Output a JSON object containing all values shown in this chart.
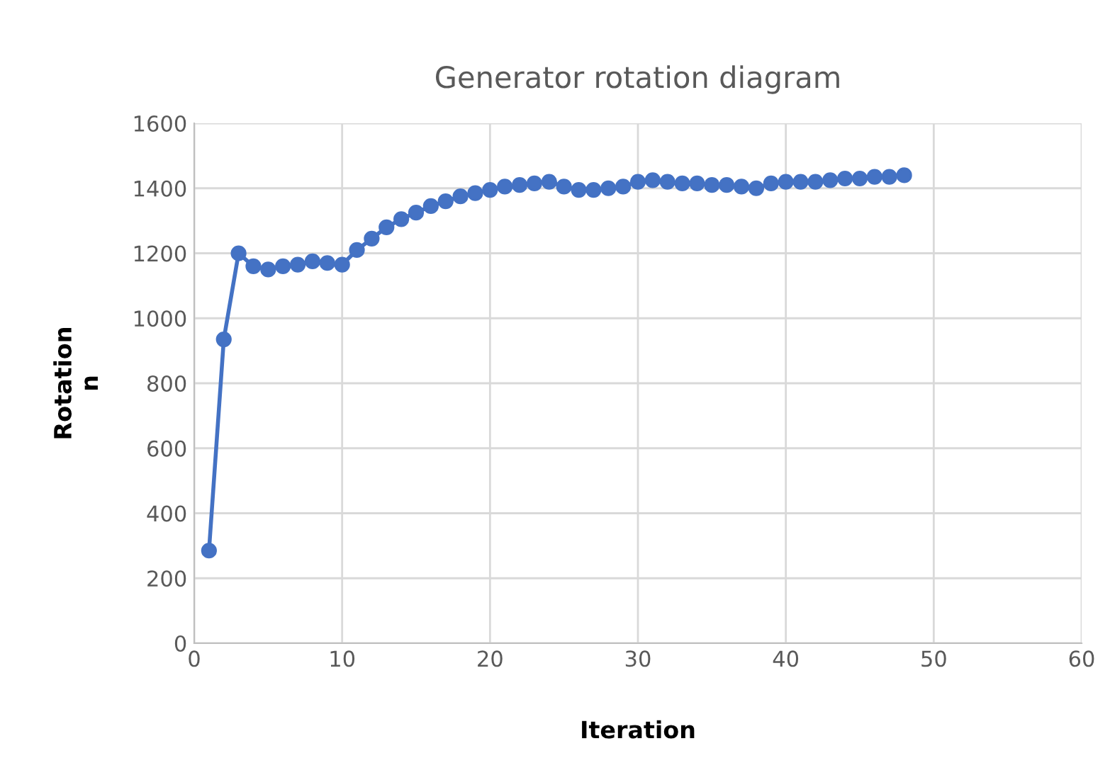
{
  "chart_data": {
    "type": "line",
    "title": "Generator rotation diagram",
    "xlabel": "Iteration",
    "ylabel": "Rotation\nn",
    "x": [
      1,
      2,
      3,
      4,
      5,
      6,
      7,
      8,
      9,
      10,
      11,
      12,
      13,
      14,
      15,
      16,
      17,
      18,
      19,
      20,
      21,
      22,
      23,
      24,
      25,
      26,
      27,
      28,
      29,
      30,
      31,
      32,
      33,
      34,
      35,
      36,
      37,
      38,
      39,
      40,
      41,
      42,
      43,
      44,
      45,
      46,
      47,
      48
    ],
    "series": [
      {
        "color": "#4472c4",
        "values": [
          285,
          935,
          1200,
          1160,
          1150,
          1160,
          1165,
          1175,
          1170,
          1165,
          1210,
          1245,
          1280,
          1305,
          1325,
          1345,
          1360,
          1375,
          1385,
          1395,
          1405,
          1410,
          1415,
          1420,
          1405,
          1395,
          1395,
          1400,
          1405,
          1420,
          1425,
          1420,
          1415,
          1415,
          1410,
          1410,
          1405,
          1400,
          1415,
          1420,
          1420,
          1420,
          1425,
          1430,
          1430,
          1435,
          1435,
          1440
        ]
      }
    ],
    "xlim": [
      0,
      60
    ],
    "xticks": [
      0,
      10,
      20,
      30,
      40,
      50,
      60
    ],
    "ylim": [
      0,
      1600
    ],
    "yticks": [
      0,
      200,
      400,
      600,
      800,
      1000,
      1200,
      1400,
      1600
    ],
    "grid": true,
    "marker": "circle",
    "line_style": "solid"
  }
}
